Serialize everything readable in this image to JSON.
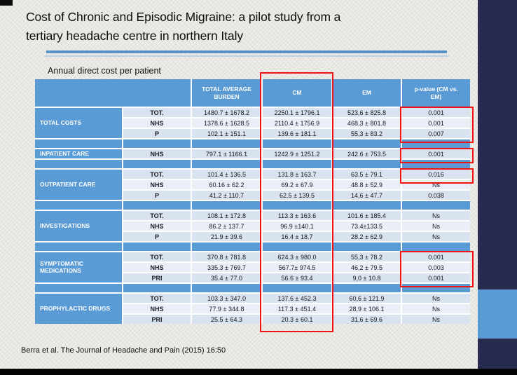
{
  "slide": {
    "title_lines": [
      "Cost of Chronic and Episodic Migraine: a pilot study from a",
      "tertiary headache centre in northern Italy"
    ],
    "subtitle": "Annual direct cost per patient",
    "citation": "Berra et al. The Journal of Headache and Pain (2015) 16:50"
  },
  "colors": {
    "table_blue": "#5b9bd5",
    "row_light": "#d9e2ef",
    "row_lighter": "#eaeff7",
    "highlight_red": "#ee1414",
    "strip_navy": "#272b50",
    "strip_square_blue": "#5b9bd5",
    "underline_blue": "#5b92c8",
    "background": "#e9e7e2"
  },
  "table": {
    "columns": [
      "",
      "TOTAL AVERAGE BURDEN",
      "CM",
      "EM",
      "p-value (CM vs. EM)"
    ],
    "cm_column_highlighted": true,
    "sections": [
      {
        "label": "TOTAL COSTS",
        "p_highlight": "all",
        "rows": [
          [
            "TOT.",
            "1480.7 ± 1678.2",
            "2250.1 ± 1796.1",
            "523,6 ± 825.8",
            "0.001"
          ],
          [
            "NHS",
            "1378.6 ± 1628.5",
            "2110.4 ± 1756.9",
            "468,3 ± 801.8",
            "0.001"
          ],
          [
            "P",
            "102.1 ± 151.1",
            "139.6 ± 181.1",
            "55,3 ± 83.2",
            "0.007"
          ]
        ]
      },
      {
        "label": "INPATIENT CARE",
        "p_highlight": "all",
        "rows": [
          [
            "NHS",
            "797.1 ± 1166.1",
            "1242.9 ± 1251.2",
            "242.6 ± 753.5",
            "0.001"
          ]
        ]
      },
      {
        "label": "OUTPATIENT CARE",
        "p_highlight": [
          0
        ],
        "rows": [
          [
            "TOT.",
            "101.4 ± 136.5",
            "131.8 ± 163.7",
            "63.5 ± 79.1",
            "0.016"
          ],
          [
            "NHS",
            "60.16 ± 62.2",
            "69.2 ± 67.9",
            "48.8 ± 52.9",
            "Ns"
          ],
          [
            "P",
            "41.2 ± 110.7",
            "62.5 ± 139.5",
            "14,6 ± 47.7",
            "0.038"
          ]
        ]
      },
      {
        "label": "INVESTIGATIONS",
        "p_highlight": null,
        "rows": [
          [
            "TOT.",
            "108.1 ± 172.8",
            "113.3 ± 163.6",
            "101.6 ± 185.4",
            "Ns"
          ],
          [
            "NHS",
            "86.2 ± 137.7",
            "96.9 ±140.1",
            "73.4±133.5",
            "Ns"
          ],
          [
            "P",
            "21.9 ± 39.6",
            "16.4 ± 18.7",
            "28.2 ± 62.9",
            "Ns"
          ]
        ]
      },
      {
        "label": "SYMPTOMATIC MEDICATIONS",
        "p_highlight": "all",
        "rows": [
          [
            "TOT.",
            "370.8 ± 781.8",
            "624.3 ± 980.0",
            "55,3 ± 78.2",
            "0.001"
          ],
          [
            "NHS",
            "335.3 ± 769.7",
            "567.7± 974.5",
            "46,2 ± 79.5",
            "0.003"
          ],
          [
            "PRI",
            "35.4 ± 77.0",
            "56.6 ± 93.4",
            "9,0 ± 10.8",
            "0.001"
          ]
        ]
      },
      {
        "label": "PROPHYLACTIC DRUGS",
        "p_highlight": null,
        "rows": [
          [
            "TOT.",
            "103.3 ± 347.0",
            "137.6 ± 452.3",
            "60,6 ± 121.9",
            "Ns"
          ],
          [
            "NHS",
            "77.9 ± 344.8",
            "117.3 ± 451.4",
            "28,9 ± 106.1",
            "Ns"
          ],
          [
            "PRI",
            "25.5 ± 64.3",
            "20.3 ± 60.1",
            "31,6 ± 69.6",
            "Ns"
          ]
        ]
      }
    ]
  }
}
